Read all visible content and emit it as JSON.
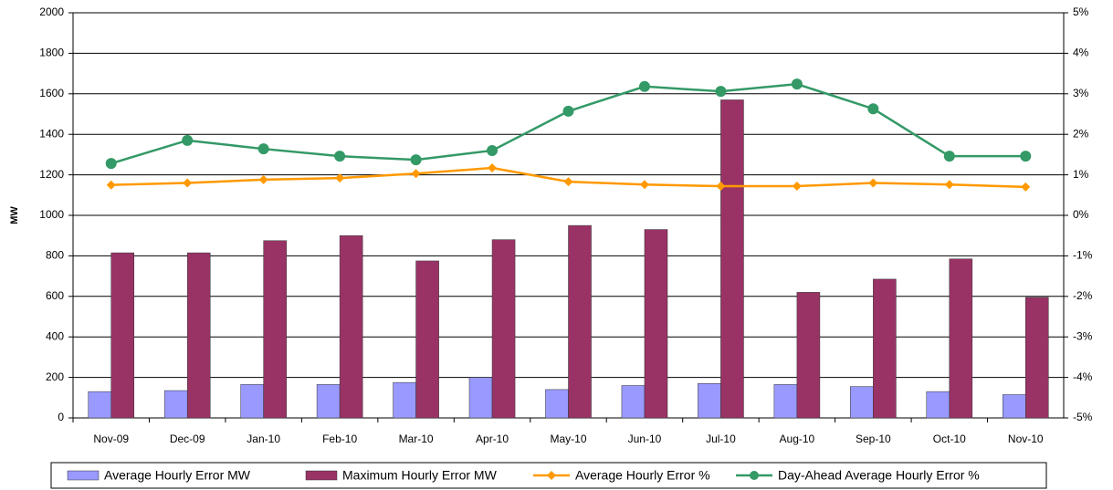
{
  "chart_data": {
    "type": "bar",
    "y_label": "MW",
    "categories": [
      "Nov-09",
      "Dec-09",
      "Jan-10",
      "Feb-10",
      "Mar-10",
      "Apr-10",
      "May-10",
      "Jun-10",
      "Jul-10",
      "Aug-10",
      "Sep-10",
      "Oct-10",
      "Nov-10"
    ],
    "series": [
      {
        "name": "Average Hourly Error MW",
        "type": "bar",
        "color": "#9999ff",
        "values": [
          130,
          135,
          165,
          165,
          175,
          200,
          140,
          160,
          170,
          165,
          155,
          130,
          115
        ]
      },
      {
        "name": "Maximum Hourly Error MW",
        "type": "bar",
        "color": "#993366",
        "values": [
          815,
          815,
          875,
          900,
          775,
          880,
          950,
          930,
          1570,
          620,
          685,
          785,
          595
        ]
      },
      {
        "name": "Average Hourly Error %",
        "type": "line",
        "axis": "y2",
        "color": "#ff9900",
        "marker": "diamond",
        "values": [
          0.75,
          0.8,
          0.88,
          0.92,
          1.03,
          1.17,
          0.83,
          0.76,
          0.72,
          0.72,
          0.8,
          0.76,
          0.7
        ]
      },
      {
        "name": "Day-Ahead Average Hourly Error %",
        "type": "line",
        "axis": "y2",
        "color": "#339966",
        "marker": "circle",
        "values": [
          1.28,
          1.85,
          1.64,
          1.46,
          1.37,
          1.6,
          2.57,
          3.18,
          3.06,
          3.24,
          2.63,
          1.46,
          1.46
        ]
      }
    ],
    "ylim": [
      0,
      2000
    ],
    "yticks": [
      0,
      200,
      400,
      600,
      800,
      1000,
      1200,
      1400,
      1600,
      1800,
      2000
    ],
    "y2lim": [
      -5,
      5
    ],
    "y2ticks": [
      {
        "value": -5,
        "label": "-5%"
      },
      {
        "value": -4,
        "label": "-4%"
      },
      {
        "value": -3,
        "label": "-3%"
      },
      {
        "value": -2,
        "label": "-2%"
      },
      {
        "value": -1,
        "label": "-1%"
      },
      {
        "value": 0,
        "label": "0%"
      },
      {
        "value": 1,
        "label": "1%"
      },
      {
        "value": 2,
        "label": "2%"
      },
      {
        "value": 3,
        "label": "3%"
      },
      {
        "value": 4,
        "label": "4%"
      },
      {
        "value": 5,
        "label": "5%"
      }
    ],
    "grid": true,
    "legend": "bottom"
  }
}
